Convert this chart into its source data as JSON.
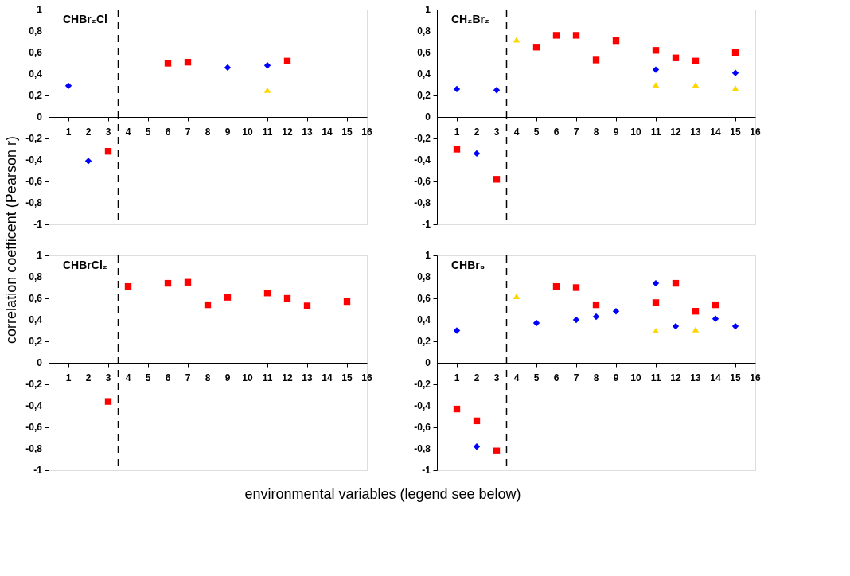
{
  "chart_data": [
    {
      "type": "scatter",
      "title": "CHBr₂Cl",
      "ylabel": "correlation coefficent (Pearson r)",
      "xlim": [
        0,
        16
      ],
      "xticks": [
        1,
        2,
        3,
        4,
        5,
        6,
        7,
        8,
        9,
        10,
        11,
        12,
        13,
        14,
        15,
        16
      ],
      "ylim": [
        -1,
        1
      ],
      "yticks": [
        {
          "value": -1,
          "label": "-1"
        },
        {
          "value": -0.8,
          "label": "-0,8"
        },
        {
          "value": -0.6,
          "label": "-0,6"
        },
        {
          "value": -0.4,
          "label": "-0,4"
        },
        {
          "value": -0.2,
          "label": "-0,2"
        },
        {
          "value": 0,
          "label": "0"
        },
        {
          "value": 0.2,
          "label": "0,2"
        },
        {
          "value": 0.4,
          "label": "0,4"
        },
        {
          "value": 0.6,
          "label": "0,6"
        },
        {
          "value": 0.8,
          "label": "0,8"
        },
        {
          "value": 1,
          "label": "1"
        }
      ],
      "grid": false,
      "ref_lines": [
        {
          "axis": "x",
          "value": 3.5,
          "line_style": "dashed"
        }
      ],
      "series": [
        {
          "color": "#0000ff",
          "marker": "diamond",
          "x": [
            1,
            2,
            9,
            11
          ],
          "values": [
            0.29,
            -0.41,
            0.46,
            0.48
          ]
        },
        {
          "color": "#ff0000",
          "marker": "square",
          "x": [
            3,
            6,
            7,
            12
          ],
          "values": [
            -0.32,
            0.5,
            0.51,
            0.52
          ]
        },
        {
          "color": "#ffd700",
          "marker": "triangle",
          "x": [
            11
          ],
          "values": [
            0.25
          ]
        }
      ]
    },
    {
      "type": "scatter",
      "title": "CH₂Br₂",
      "xlim": [
        0,
        16
      ],
      "xticks": [
        1,
        2,
        3,
        4,
        5,
        6,
        7,
        8,
        9,
        10,
        11,
        12,
        13,
        14,
        15,
        16
      ],
      "ylim": [
        -1,
        1
      ],
      "yticks": [
        {
          "value": -1,
          "label": "-1"
        },
        {
          "value": -0.8,
          "label": "-0,8"
        },
        {
          "value": -0.6,
          "label": "-0,6"
        },
        {
          "value": -0.4,
          "label": "-0,4"
        },
        {
          "value": -0.2,
          "label": "-0,2"
        },
        {
          "value": 0,
          "label": "0"
        },
        {
          "value": 0.2,
          "label": "0,2"
        },
        {
          "value": 0.4,
          "label": "0,4"
        },
        {
          "value": 0.6,
          "label": "0,6"
        },
        {
          "value": 0.8,
          "label": "0,8"
        },
        {
          "value": 1,
          "label": "1"
        }
      ],
      "grid": false,
      "ref_lines": [
        {
          "axis": "x",
          "value": 3.5,
          "line_style": "dashed"
        }
      ],
      "series": [
        {
          "color": "#0000ff",
          "marker": "diamond",
          "x": [
            1,
            2,
            3,
            11,
            15
          ],
          "values": [
            0.26,
            -0.34,
            0.25,
            0.44,
            0.41
          ]
        },
        {
          "color": "#ff0000",
          "marker": "square",
          "x": [
            1,
            3,
            5,
            6,
            7,
            8,
            9,
            11,
            12,
            13,
            15
          ],
          "values": [
            -0.3,
            -0.58,
            0.65,
            0.76,
            0.76,
            0.53,
            0.71,
            0.62,
            0.55,
            0.52,
            0.6
          ]
        },
        {
          "color": "#ffd700",
          "marker": "triangle",
          "x": [
            4,
            11,
            13,
            15
          ],
          "values": [
            0.72,
            0.3,
            0.3,
            0.27
          ]
        }
      ]
    },
    {
      "type": "scatter",
      "title": "CHBrCl₂",
      "xlabel": "environmental variables (legend see below)",
      "xlim": [
        0,
        16
      ],
      "xticks": [
        1,
        2,
        3,
        4,
        5,
        6,
        7,
        8,
        9,
        10,
        11,
        12,
        13,
        14,
        15,
        16
      ],
      "ylim": [
        -1,
        1
      ],
      "yticks": [
        {
          "value": -1,
          "label": "-1"
        },
        {
          "value": -0.8,
          "label": "-0,8"
        },
        {
          "value": -0.6,
          "label": "-0,6"
        },
        {
          "value": -0.4,
          "label": "-0,4"
        },
        {
          "value": -0.2,
          "label": "-0,2"
        },
        {
          "value": 0,
          "label": "0"
        },
        {
          "value": 0.2,
          "label": "0,2"
        },
        {
          "value": 0.4,
          "label": "0,4"
        },
        {
          "value": 0.6,
          "label": "0,6"
        },
        {
          "value": 0.8,
          "label": "0,8"
        },
        {
          "value": 1,
          "label": "1"
        }
      ],
      "grid": false,
      "ref_lines": [
        {
          "axis": "x",
          "value": 3.5,
          "line_style": "dashed"
        }
      ],
      "series": [
        {
          "color": "#ff0000",
          "marker": "square",
          "x": [
            3,
            4,
            6,
            7,
            8,
            9,
            11,
            12,
            13,
            15
          ],
          "values": [
            -0.36,
            0.71,
            0.74,
            0.75,
            0.54,
            0.61,
            0.65,
            0.6,
            0.53,
            0.57
          ]
        }
      ]
    },
    {
      "type": "scatter",
      "title": "CHBr₃",
      "xlim": [
        0,
        16
      ],
      "xticks": [
        1,
        2,
        3,
        4,
        5,
        6,
        7,
        8,
        9,
        10,
        11,
        12,
        13,
        14,
        15,
        16
      ],
      "ylim": [
        -1,
        1
      ],
      "yticks": [
        {
          "value": -1,
          "label": "-1"
        },
        {
          "value": -0.8,
          "label": "-0,8"
        },
        {
          "value": -0.6,
          "label": "-0,6"
        },
        {
          "value": -0.4,
          "label": "-0,4"
        },
        {
          "value": -0.2,
          "label": "-0,2"
        },
        {
          "value": 0,
          "label": "0"
        },
        {
          "value": 0.2,
          "label": "0,2"
        },
        {
          "value": 0.4,
          "label": "0,4"
        },
        {
          "value": 0.6,
          "label": "0,6"
        },
        {
          "value": 0.8,
          "label": "0,8"
        },
        {
          "value": 1,
          "label": "1"
        }
      ],
      "grid": false,
      "ref_lines": [
        {
          "axis": "x",
          "value": 3.5,
          "line_style": "dashed"
        }
      ],
      "series": [
        {
          "color": "#0000ff",
          "marker": "diamond",
          "x": [
            1,
            2,
            5,
            7,
            8,
            9,
            11,
            12,
            14,
            15
          ],
          "values": [
            0.3,
            -0.78,
            0.37,
            0.4,
            0.43,
            0.48,
            0.74,
            0.34,
            0.41,
            0.34
          ]
        },
        {
          "color": "#ff0000",
          "marker": "square",
          "x": [
            1,
            2,
            3,
            6,
            7,
            8,
            11,
            12,
            13,
            14
          ],
          "values": [
            -0.43,
            -0.54,
            -0.82,
            0.71,
            0.7,
            0.54,
            0.56,
            0.74,
            0.48,
            0.54
          ]
        },
        {
          "color": "#ffd700",
          "marker": "triangle",
          "x": [
            4,
            11,
            13
          ],
          "values": [
            0.62,
            0.3,
            0.31
          ]
        }
      ]
    }
  ]
}
